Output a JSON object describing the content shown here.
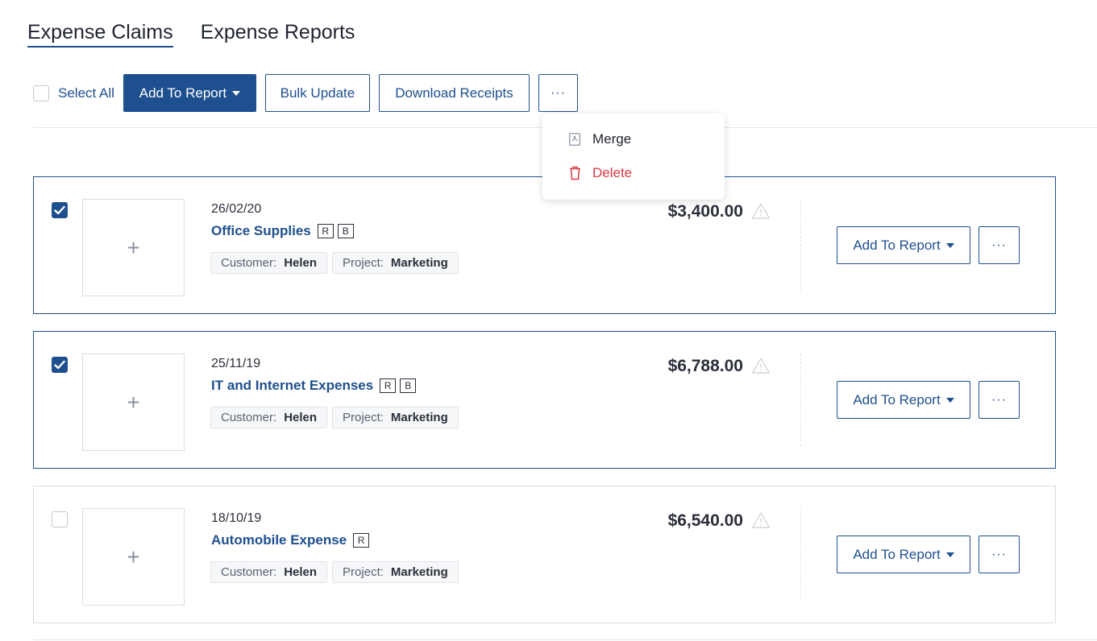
{
  "tabs": [
    {
      "label": "Expense Claims",
      "active": true
    },
    {
      "label": "Expense Reports",
      "active": false
    }
  ],
  "toolbar": {
    "select_all_label": "Select All",
    "add_to_report_label": "Add To Report",
    "bulk_update_label": "Bulk Update",
    "download_receipts_label": "Download Receipts",
    "more_label": "···"
  },
  "menu": {
    "merge_label": "Merge",
    "delete_label": "Delete"
  },
  "expenses": [
    {
      "date": "26/02/20",
      "title": "Office Supplies",
      "badges": [
        "R",
        "B"
      ],
      "customer_label": "Customer:",
      "customer": "Helen",
      "project_label": "Project:",
      "project": "Marketing",
      "amount": "$3,400.00",
      "selected": true,
      "add_to_report_label": "Add To Report",
      "more_label": "···",
      "thumb_plus": "+"
    },
    {
      "date": "25/11/19",
      "title": "IT and Internet Expenses",
      "badges": [
        "R",
        "B"
      ],
      "customer_label": "Customer:",
      "customer": "Helen",
      "project_label": "Project:",
      "project": "Marketing",
      "amount": "$6,788.00",
      "selected": true,
      "add_to_report_label": "Add To Report",
      "more_label": "···",
      "thumb_plus": "+"
    },
    {
      "date": "18/10/19",
      "title": "Automobile Expense",
      "badges": [
        "R"
      ],
      "customer_label": "Customer:",
      "customer": "Helen",
      "project_label": "Project:",
      "project": "Marketing",
      "amount": "$6,540.00",
      "selected": false,
      "add_to_report_label": "Add To Report",
      "more_label": "···",
      "thumb_plus": "+"
    }
  ],
  "colors": {
    "primary": "#1e4f8f",
    "danger": "#d73a45",
    "border": "#d9dce1"
  }
}
